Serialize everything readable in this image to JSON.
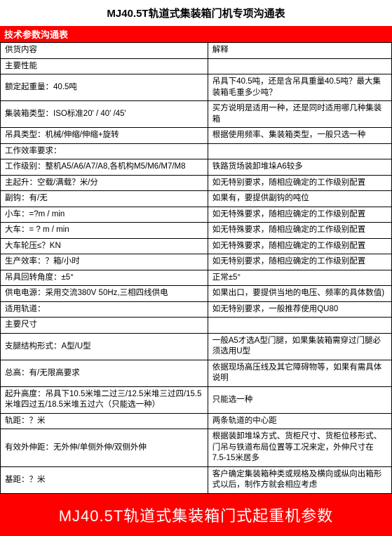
{
  "title": "MJ40.5T轨道式集装箱门机专项沟通表",
  "section_header": "技术参数沟通表",
  "columns": {
    "left": "供货内容",
    "right": "解释"
  },
  "rows": [
    {
      "l": "主要性能",
      "r": ""
    },
    {
      "l": "额定起重量：40.5吨",
      "r": "吊具下40.5吨，还是含吊具重量40.5吨？最大集装箱毛重多少吨？"
    },
    {
      "l": "集装箱类型：ISO标准20' / 40' /45'",
      "r": "买方说明是适用一种，还是同时适用哪几种集装箱"
    },
    {
      "l": "吊具类型：机械/伸缩/伸缩+旋转",
      "r": "根据使用频率、集装箱类型，一般只选一种"
    },
    {
      "l": "工作效率要求：",
      "r": ""
    },
    {
      "l": "工作级别：整机A5/A6/A7/A8,各机构M5/M6/M7/M8",
      "r": "铁路货场装卸堆垛A6较多"
    },
    {
      "l": "主起升：空载/满载？米/分",
      "r": "如无特别要求，随相应确定的工作级别配置"
    },
    {
      "l": "副钩：有/无",
      "r": "如果有，要提供副钩的吨位"
    },
    {
      "l": "小车：=?m / min",
      "r": "如无特殊要求，随相应确定的工作级别配置"
    },
    {
      "l": "大车：= ? m / min",
      "r": "如无特殊要求，随相应确定的工作级别配置"
    },
    {
      "l": "大车轮压≤？KN",
      "r": "如无特殊要求，随相应确定的工作级别配置"
    },
    {
      "l": "生产效率：？箱/小时",
      "r": "如无特别要求，随相应确定的工作级别配置"
    },
    {
      "l": "吊具回转角度：±5°",
      "r": "正常±5°"
    },
    {
      "l": "供电电源：采用交流380V 50Hz,三相四线供电",
      "r": "如果出口，要提供当地的电压、频率的具体数值)"
    },
    {
      "l": "适用轨道：",
      "r": "如无特别要求，一般推荐使用QU80"
    },
    {
      "l": "主要尺寸",
      "r": ""
    },
    {
      "l": "支腿结构形式：A型/U型",
      "r": "一般A5才选A型门腿，如果集装箱需穿过门腿必须选用U型"
    },
    {
      "l": "总高：有/无限高要求",
      "r": "依据现场高压线及其它障碍物等，如果有需具体说明"
    },
    {
      "l": "起升高度：吊具下10.5米堆二过三/12.5米堆三过四/15.5米堆四过五/18.5米堆五过六（只能选一种）",
      "r": "只能选一种"
    },
    {
      "l": "轨距：？米",
      "r": "两条轨道的中心距"
    },
    {
      "l": "有效外伸距：无外伸/单侧外伸/双侧外伸",
      "r": "根据装卸堆垛方式、货柜尺寸、货柜位移形式、门吊与铁道布局位置等工况来定，外伸尺寸在7.5-15米居多"
    },
    {
      "l": "基距：？米",
      "r": "客户确定集装箱种类或规格及横向或纵向出箱形式以后，制作方就会相应考虑"
    }
  ],
  "footer": "MJ40.5T轨道式集装箱门式起重机参数",
  "colors": {
    "red": "#ff0000",
    "white": "#ffffff",
    "black": "#000000"
  }
}
